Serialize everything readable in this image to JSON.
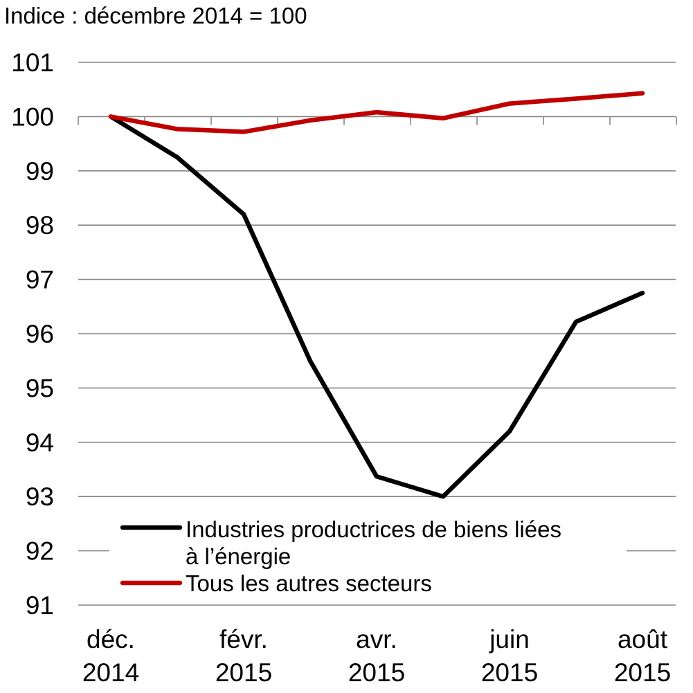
{
  "chart_data": {
    "type": "line",
    "unit_label": "Indice : décembre 2014 = 100",
    "x": [
      "2014-12",
      "2015-01",
      "2015-02",
      "2015-03",
      "2015-04",
      "2015-05",
      "2015-06",
      "2015-07",
      "2015-08"
    ],
    "x_tick_labels": [
      {
        "index": 0,
        "line1": "déc.",
        "line2": "2014"
      },
      {
        "index": 2,
        "line1": "févr.",
        "line2": "2015"
      },
      {
        "index": 4,
        "line1": "avr.",
        "line2": "2015"
      },
      {
        "index": 6,
        "line1": "juin",
        "line2": "2015"
      },
      {
        "index": 8,
        "line1": "août",
        "line2": "2015"
      }
    ],
    "ylim": [
      91,
      101
    ],
    "y_ticks": [
      91,
      92,
      93,
      94,
      95,
      96,
      97,
      98,
      99,
      100,
      101
    ],
    "grid": true,
    "legend_position": "bottom-left",
    "series": [
      {
        "name": "Industries productrices de biens liées à l’énergie",
        "legend_lines": [
          "Industries productrices de biens liées",
          "à l’énergie"
        ],
        "color": "#000000",
        "values": [
          100,
          99.25,
          98.2,
          95.5,
          93.37,
          93.0,
          94.2,
          96.22,
          96.75
        ]
      },
      {
        "name": "Tous les autres secteurs",
        "legend_lines": [
          "Tous les autres secteurs"
        ],
        "color": "#C00000",
        "values": [
          100,
          99.77,
          99.72,
          99.93,
          100.08,
          99.97,
          100.24,
          100.33,
          100.43
        ]
      }
    ]
  }
}
